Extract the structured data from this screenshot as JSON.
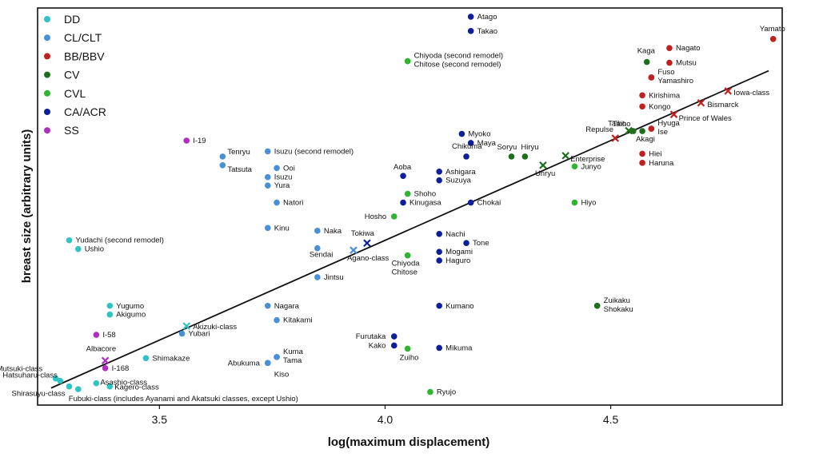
{
  "chart_data": {
    "type": "scatter",
    "xlabel": "log(maximum displacement)",
    "ylabel": "breast size (arbitrary units)",
    "xlim": [
      3.23,
      4.88
    ],
    "ylim": [
      0,
      100
    ],
    "x_ticks": [
      "3.5",
      "4.0",
      "4.5"
    ],
    "x_tick_values": [
      3.5,
      4.0,
      4.5
    ],
    "grid": false,
    "legend_position": "top-left",
    "colors": {
      "DD": "#2ec4c4",
      "CL/CLT": "#4a90d9",
      "BB/BBV": "#c0201e",
      "CV": "#1e6e1e",
      "CVL": "#2fb52f",
      "CA/ACR": "#0d1f9a",
      "SS": "#b02ec0",
      "trend": "#111111"
    },
    "legend": [
      "DD",
      "CL/CLT",
      "BB/BBV",
      "CV",
      "CVL",
      "CA/ACR",
      "SS"
    ],
    "trendline": {
      "x": [
        3.26,
        4.85
      ],
      "y": [
        4.3,
        84.2
      ]
    },
    "series": [
      {
        "name": "DD",
        "points": [
          {
            "x": 3.3,
            "y": 41.5,
            "label": "Yudachi (second remodel)"
          },
          {
            "x": 3.32,
            "y": 39.3,
            "label": "Ushio"
          },
          {
            "x": 3.39,
            "y": 25.0,
            "label": "Yugumo"
          },
          {
            "x": 3.39,
            "y": 22.8,
            "label": "Akigumo"
          },
          {
            "x": 3.47,
            "y": 11.8,
            "label": "Shimakaze"
          },
          {
            "x": 3.27,
            "y": 6.7,
            "label": "Mutsuki-class"
          },
          {
            "x": 3.28,
            "y": 6.1,
            "label": "Hatsuharu-class"
          },
          {
            "x": 3.3,
            "y": 4.7,
            "label": "Shirasuyu-class"
          },
          {
            "x": 3.32,
            "y": 4.0,
            "label": "Fubuki-class (includes Ayanami and Akatsuki classes, except Ushio)"
          },
          {
            "x": 3.36,
            "y": 5.5,
            "label": "Asashio-class"
          },
          {
            "x": 3.39,
            "y": 4.7,
            "label": "Kagero-class"
          }
        ]
      },
      {
        "name": "CL/CLT",
        "points": [
          {
            "x": 3.64,
            "y": 62.6,
            "label": "Tenryu"
          },
          {
            "x": 3.64,
            "y": 60.4,
            "label": "Tatsuta"
          },
          {
            "x": 3.74,
            "y": 63.9,
            "label": "Isuzu (second remodel)"
          },
          {
            "x": 3.76,
            "y": 59.7,
            "label": "Ooi"
          },
          {
            "x": 3.74,
            "y": 57.4,
            "label": "Isuzu"
          },
          {
            "x": 3.74,
            "y": 55.3,
            "label": "Yura"
          },
          {
            "x": 3.76,
            "y": 51.0,
            "label": "Natori"
          },
          {
            "x": 3.74,
            "y": 44.6,
            "label": "Kinu"
          },
          {
            "x": 3.85,
            "y": 43.9,
            "label": "Naka"
          },
          {
            "x": 3.85,
            "y": 39.5,
            "label": "Sendai"
          },
          {
            "x": 3.85,
            "y": 32.2,
            "label": "Jintsu"
          },
          {
            "x": 3.74,
            "y": 25.0,
            "label": "Nagara"
          },
          {
            "x": 3.76,
            "y": 21.4,
            "label": "Kitakami"
          },
          {
            "x": 3.55,
            "y": 18.0,
            "label": "Yubari"
          },
          {
            "x": 3.76,
            "y": 12.1,
            "label": "Kuma"
          },
          {
            "x": 3.76,
            "y": 12.1,
            "label": "Tama"
          },
          {
            "x": 3.74,
            "y": 10.6,
            "label": "Abukuma"
          },
          {
            "x": 3.74,
            "y": 10.6,
            "label": "Kiso"
          }
        ]
      },
      {
        "name": "BB/BBV",
        "points": [
          {
            "x": 4.86,
            "y": 92.2,
            "label": "Yamato"
          },
          {
            "x": 4.63,
            "y": 89.9,
            "label": "Nagato"
          },
          {
            "x": 4.63,
            "y": 86.2,
            "label": "Mutsu"
          },
          {
            "x": 4.59,
            "y": 82.5,
            "label": "Fuso"
          },
          {
            "x": 4.59,
            "y": 82.5,
            "label": "Yamashiro"
          },
          {
            "x": 4.57,
            "y": 78.0,
            "label": "Kirishima"
          },
          {
            "x": 4.57,
            "y": 75.2,
            "label": "Kongo"
          },
          {
            "x": 4.59,
            "y": 69.6,
            "label": "Hyuga"
          },
          {
            "x": 4.59,
            "y": 69.6,
            "label": "Ise"
          },
          {
            "x": 4.57,
            "y": 63.3,
            "label": "Hiei"
          },
          {
            "x": 4.57,
            "y": 61.0,
            "label": "Haruna"
          }
        ]
      },
      {
        "name": "CV",
        "points": [
          {
            "x": 4.58,
            "y": 86.4,
            "label": "Kaga"
          },
          {
            "x": 4.57,
            "y": 69.0,
            "label": "Akagi"
          },
          {
            "x": 4.55,
            "y": 69.0,
            "label": "Taiho"
          },
          {
            "x": 4.28,
            "y": 62.6,
            "label": "Soryu"
          },
          {
            "x": 4.31,
            "y": 62.6,
            "label": "Hiryu"
          },
          {
            "x": 4.47,
            "y": 25.0,
            "label": "Zuikaku"
          },
          {
            "x": 4.47,
            "y": 25.0,
            "label": "Shokaku"
          }
        ]
      },
      {
        "name": "CVL",
        "points": [
          {
            "x": 4.05,
            "y": 86.6,
            "label": "Chiyoda (second remodel)"
          },
          {
            "x": 4.05,
            "y": 86.6,
            "label": "Chitose (second remodel)"
          },
          {
            "x": 4.42,
            "y": 60.1,
            "label": "Junyo"
          },
          {
            "x": 4.42,
            "y": 51.0,
            "label": "Hiyo"
          },
          {
            "x": 4.05,
            "y": 53.2,
            "label": "Shoho"
          },
          {
            "x": 4.02,
            "y": 47.5,
            "label": "Hosho"
          },
          {
            "x": 4.05,
            "y": 37.7,
            "label": "Chiyoda"
          },
          {
            "x": 4.05,
            "y": 37.7,
            "label": "Chitose"
          },
          {
            "x": 4.05,
            "y": 14.2,
            "label": "Zuiho"
          },
          {
            "x": 4.1,
            "y": 3.3,
            "label": "Ryujo"
          }
        ]
      },
      {
        "name": "CA/ACR",
        "points": [
          {
            "x": 4.19,
            "y": 97.8,
            "label": "Atago"
          },
          {
            "x": 4.19,
            "y": 94.2,
            "label": "Takao"
          },
          {
            "x": 4.17,
            "y": 68.3,
            "label": "Myoko"
          },
          {
            "x": 4.19,
            "y": 66.0,
            "label": "Maya"
          },
          {
            "x": 4.18,
            "y": 62.6,
            "label": "Chikuma"
          },
          {
            "x": 4.04,
            "y": 57.7,
            "label": "Aoba"
          },
          {
            "x": 4.12,
            "y": 58.8,
            "label": "Ashigara"
          },
          {
            "x": 4.12,
            "y": 56.6,
            "label": "Suzuya"
          },
          {
            "x": 4.04,
            "y": 51.0,
            "label": "Kinugasa"
          },
          {
            "x": 4.19,
            "y": 51.0,
            "label": "Chokai"
          },
          {
            "x": 4.12,
            "y": 43.1,
            "label": "Nachi"
          },
          {
            "x": 4.18,
            "y": 40.8,
            "label": "Tone"
          },
          {
            "x": 4.12,
            "y": 38.6,
            "label": "Mogami"
          },
          {
            "x": 4.12,
            "y": 36.4,
            "label": "Haguro"
          },
          {
            "x": 4.12,
            "y": 25.0,
            "label": "Kumano"
          },
          {
            "x": 4.02,
            "y": 17.3,
            "label": "Furutaka"
          },
          {
            "x": 4.02,
            "y": 15.0,
            "label": "Kako"
          },
          {
            "x": 4.12,
            "y": 14.4,
            "label": "Mikuma"
          }
        ]
      },
      {
        "name": "SS",
        "points": [
          {
            "x": 3.56,
            "y": 66.6,
            "label": "I-19"
          },
          {
            "x": 3.36,
            "y": 17.7,
            "label": "I-58"
          },
          {
            "x": 3.38,
            "y": 9.3,
            "label": "I-168"
          }
        ]
      }
    ],
    "class_markers": [
      {
        "x": 3.56,
        "y": 19.9,
        "series": "DD",
        "label": "Akizuki-class"
      },
      {
        "x": 3.38,
        "y": 11.2,
        "series": "SS",
        "label": "Albacore"
      },
      {
        "x": 3.93,
        "y": 39.0,
        "series": "CL/CLT",
        "label": "Agano-class"
      },
      {
        "x": 3.96,
        "y": 40.8,
        "series": "CA/ACR",
        "label": "Tokiwa"
      },
      {
        "x": 4.35,
        "y": 60.4,
        "series": "CV",
        "label": "Unryu"
      },
      {
        "x": 4.4,
        "y": 62.8,
        "series": "CV",
        "label": "Enterprise"
      },
      {
        "x": 4.54,
        "y": 69.1,
        "series": "CV",
        "label": "Taiho"
      },
      {
        "x": 4.51,
        "y": 67.2,
        "series": "BB/BBV",
        "label": "Repulse"
      },
      {
        "x": 4.64,
        "y": 73.2,
        "series": "BB/BBV",
        "label": "Prince of Wales"
      },
      {
        "x": 4.7,
        "y": 76.1,
        "series": "BB/BBV",
        "label": "Bismarck"
      },
      {
        "x": 4.76,
        "y": 79.1,
        "series": "BB/BBV",
        "label": "Iowa-class"
      }
    ]
  }
}
